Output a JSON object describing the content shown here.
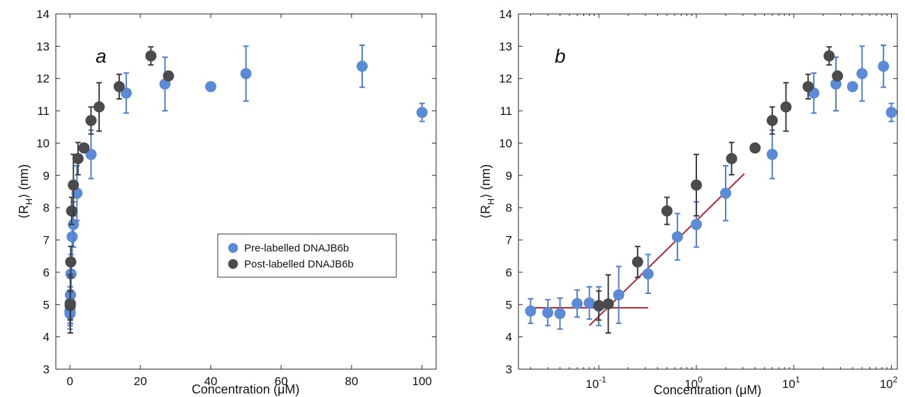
{
  "colors": {
    "pre": "#5b8bd6",
    "post": "#4b4b4d",
    "pre_err": "#4a7fd0",
    "post_err": "#3a3a3a",
    "fit": "#b0212a"
  },
  "legend": {
    "pre": "Pre-labelled DNAJB6b",
    "post": "Post-labelled DNAJB6b"
  },
  "chart_data": [
    {
      "type": "scatter",
      "panel": "a",
      "xscale": "linear",
      "xlim": [
        -4,
        104
      ],
      "ylim": [
        3,
        14
      ],
      "xticks": [
        0,
        20,
        40,
        60,
        80,
        100
      ],
      "xtick_labels": [
        "0",
        "20",
        "40",
        "60",
        "80",
        "100"
      ],
      "yticks": [
        3,
        4,
        5,
        6,
        7,
        8,
        9,
        10,
        11,
        12,
        13,
        14
      ],
      "ytick_labels": [
        "3",
        "4",
        "5",
        "6",
        "7",
        "8",
        "9",
        "10",
        "11",
        "12",
        "13",
        "14"
      ],
      "xlabel": "Concentration (μM)",
      "ylabel": "⟨R⟩ (nm)",
      "ylabel_main": "⟨R",
      "ylabel_sub": "H",
      "ylabel_tail": "⟩ (nm)",
      "legend_position": "center-right",
      "series": [
        {
          "name": "Pre-labelled DNAJB6b",
          "x": [
            0.02,
            0.03,
            0.04,
            0.06,
            0.08,
            0.1,
            0.16,
            0.32,
            0.64,
            1.0,
            2.0,
            6.0,
            16.0,
            27.0,
            40.0,
            50.0,
            83.0,
            100.0
          ],
          "y": [
            4.8,
            4.75,
            4.72,
            5.03,
            5.05,
            4.95,
            5.3,
            5.95,
            7.1,
            7.48,
            8.45,
            9.65,
            11.55,
            11.83,
            11.75,
            12.15,
            12.38,
            10.95
          ],
          "yerr": [
            0.38,
            0.4,
            0.48,
            0.42,
            0.5,
            0.6,
            0.88,
            0.6,
            0.72,
            0.7,
            0.85,
            0.75,
            0.62,
            0.83,
            0.0,
            0.85,
            0.65,
            0.28
          ]
        },
        {
          "name": "Post-labelled DNAJB6b",
          "x": [
            0.1,
            0.125,
            0.25,
            0.5,
            1.0,
            2.3,
            4.0,
            6.0,
            8.3,
            14.0,
            23.0,
            28.0
          ],
          "y": [
            4.97,
            5.02,
            6.32,
            7.9,
            8.7,
            9.52,
            9.85,
            10.7,
            11.12,
            11.75,
            12.7,
            12.08
          ],
          "yerr": [
            0.45,
            0.9,
            0.48,
            0.42,
            0.95,
            0.5,
            0.0,
            0.42,
            0.75,
            0.38,
            0.28,
            0.0
          ]
        }
      ]
    },
    {
      "type": "scatter",
      "panel": "b",
      "xscale": "log",
      "xlim": [
        0.015,
        115
      ],
      "ylim": [
        3,
        14
      ],
      "xticks": [
        0.1,
        1,
        10,
        100
      ],
      "xtick_base": "10",
      "xtick_exponents": [
        "-1",
        "0",
        "1",
        "2"
      ],
      "yticks": [
        3,
        4,
        5,
        6,
        7,
        8,
        9,
        10,
        11,
        12,
        13,
        14
      ],
      "ytick_labels": [
        "3",
        "4",
        "5",
        "6",
        "7",
        "8",
        "9",
        "10",
        "11",
        "12",
        "13",
        "14"
      ],
      "xlabel": "Concentration (μM)",
      "ylabel_main": "⟨R",
      "ylabel_sub": "H",
      "ylabel_tail": "⟩ (nm)",
      "series": [
        {
          "name": "Pre-labelled DNAJB6b",
          "x": [
            0.02,
            0.03,
            0.04,
            0.06,
            0.08,
            0.1,
            0.16,
            0.32,
            0.64,
            1.0,
            2.0,
            6.0,
            16.0,
            27.0,
            40.0,
            50.0,
            83.0,
            100.0
          ],
          "y": [
            4.8,
            4.75,
            4.72,
            5.03,
            5.05,
            4.95,
            5.3,
            5.95,
            7.1,
            7.48,
            8.45,
            9.65,
            11.55,
            11.83,
            11.75,
            12.15,
            12.38,
            10.95
          ],
          "yerr": [
            0.38,
            0.4,
            0.48,
            0.42,
            0.5,
            0.6,
            0.88,
            0.6,
            0.72,
            0.7,
            0.85,
            0.75,
            0.62,
            0.83,
            0.0,
            0.85,
            0.65,
            0.28
          ]
        },
        {
          "name": "Post-labelled DNAJB6b",
          "x": [
            0.1,
            0.125,
            0.25,
            0.5,
            1.0,
            2.3,
            4.0,
            6.0,
            8.3,
            14.0,
            23.0,
            28.0
          ],
          "y": [
            4.97,
            5.02,
            6.32,
            7.9,
            8.7,
            9.52,
            9.85,
            10.7,
            11.12,
            11.75,
            12.7,
            12.08
          ],
          "yerr": [
            0.45,
            0.9,
            0.48,
            0.42,
            0.95,
            0.5,
            0.0,
            0.42,
            0.75,
            0.38,
            0.28,
            0.0
          ]
        }
      ],
      "fit_lines": [
        {
          "x": [
            0.02,
            0.32
          ],
          "y": [
            4.9,
            4.9
          ]
        },
        {
          "x": [
            0.08,
            3.1
          ],
          "y": [
            4.35,
            9.05
          ]
        }
      ]
    }
  ]
}
